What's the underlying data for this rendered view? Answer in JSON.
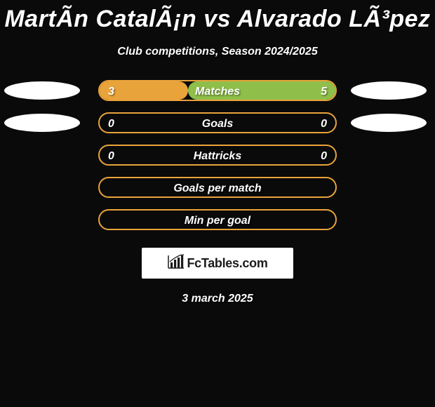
{
  "header": {
    "title": "MartÃ­n CatalÃ¡n vs Alvarado LÃ³pez",
    "subtitle": "Club competitions, Season 2024/2025"
  },
  "chart": {
    "type": "comparison-bars",
    "track_width": 340,
    "track_height": 30,
    "border_radius": 16,
    "border_color_left": "#e9a33b",
    "border_color_right": "#8fbf4a",
    "fill_left": "#e9a33b",
    "fill_right": "#8fbf4a",
    "metric_text_color": "#ffffff",
    "value_text_color": "#ffffff",
    "rows": [
      {
        "metric": "Matches",
        "left": "3",
        "right": "5",
        "left_pct": 37.5,
        "right_pct": 62.5,
        "show_left_ellipse": true,
        "show_right_ellipse": true
      },
      {
        "metric": "Goals",
        "left": "0",
        "right": "0",
        "left_pct": 0,
        "right_pct": 0,
        "show_left_ellipse": true,
        "show_right_ellipse": true
      },
      {
        "metric": "Hattricks",
        "left": "0",
        "right": "0",
        "left_pct": 0,
        "right_pct": 0,
        "show_left_ellipse": false,
        "show_right_ellipse": false
      },
      {
        "metric": "Goals per match",
        "left": "",
        "right": "",
        "left_pct": 0,
        "right_pct": 0,
        "show_left_ellipse": false,
        "show_right_ellipse": false
      },
      {
        "metric": "Min per goal",
        "left": "",
        "right": "",
        "left_pct": 0,
        "right_pct": 0,
        "show_left_ellipse": false,
        "show_right_ellipse": false
      }
    ]
  },
  "brand": {
    "text": "FcTables.com",
    "icon": "bar-chart-icon"
  },
  "footer": {
    "date": "3 march 2025"
  },
  "colors": {
    "background": "#0a0a0a",
    "ellipse": "#ffffff",
    "brand_bg": "#ffffff"
  },
  "typography": {
    "title_fontsize": 34,
    "subtitle_fontsize": 16,
    "metric_fontsize": 16,
    "font_style": "italic",
    "font_weight": 800
  }
}
